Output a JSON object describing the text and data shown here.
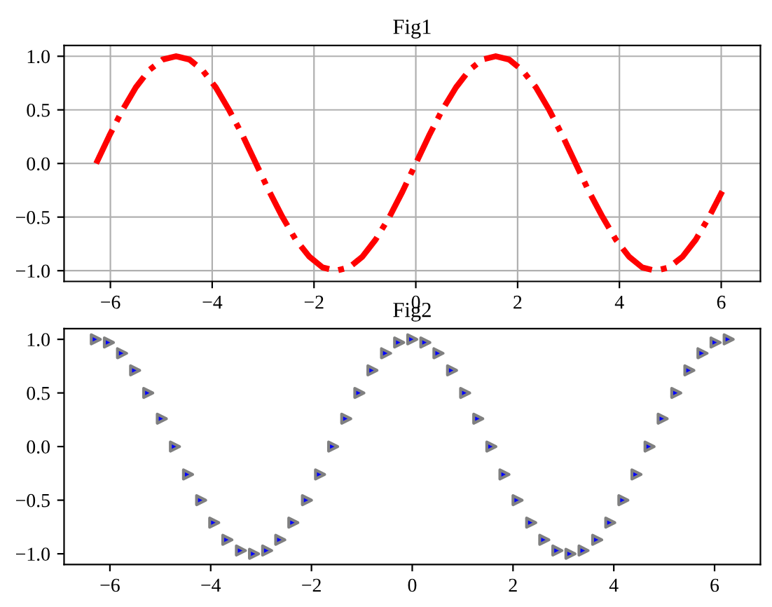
{
  "chart_data": [
    {
      "type": "line",
      "title": "Fig1",
      "grid": true,
      "line_style": "dashdot",
      "marker": "none",
      "x": [
        -6.28,
        -6.02,
        -5.76,
        -5.5,
        -5.24,
        -4.97,
        -4.71,
        -4.45,
        -4.19,
        -3.93,
        -3.67,
        -3.4,
        -3.14,
        -2.88,
        -2.62,
        -2.36,
        -2.09,
        -1.83,
        -1.57,
        -1.31,
        -1.05,
        -0.79,
        -0.52,
        -0.26,
        0,
        0.26,
        0.52,
        0.79,
        1.05,
        1.31,
        1.57,
        1.83,
        2.09,
        2.36,
        2.62,
        2.88,
        3.14,
        3.4,
        3.67,
        3.93,
        4.19,
        4.45,
        4.71,
        4.97,
        5.24,
        5.5,
        5.76,
        6.02
      ],
      "series": [
        {
          "color": "#ff0000",
          "values": [
            0,
            0.26,
            0.5,
            0.71,
            0.87,
            0.97,
            1,
            0.97,
            0.87,
            0.71,
            0.5,
            0.26,
            0,
            -0.26,
            -0.5,
            -0.71,
            -0.87,
            -0.97,
            -1,
            -0.97,
            -0.87,
            -0.71,
            -0.5,
            -0.26,
            0,
            0.26,
            0.5,
            0.71,
            0.87,
            0.97,
            1,
            0.97,
            0.87,
            0.71,
            0.5,
            0.26,
            0,
            -0.26,
            -0.5,
            -0.71,
            -0.87,
            -0.97,
            -1,
            -0.97,
            -0.87,
            -0.71,
            -0.5,
            -0.26
          ]
        }
      ],
      "xlim": [
        -6.91,
        6.77
      ],
      "xticks": [
        -6,
        -4,
        -2,
        0,
        2,
        4,
        6
      ],
      "ylim": [
        -1.1,
        1.1
      ],
      "yticks": [
        {
          "value": -1,
          "label": "−1.0"
        },
        {
          "value": -0.5,
          "label": "−0.5"
        },
        {
          "value": 0,
          "label": "0.0"
        },
        {
          "value": 0.5,
          "label": "0.5"
        },
        {
          "value": 1,
          "label": "1.0"
        }
      ]
    },
    {
      "type": "scatter",
      "title": "Fig2",
      "grid": false,
      "marker": "triangle",
      "x": [
        -6.28,
        -6.02,
        -5.76,
        -5.5,
        -5.24,
        -4.97,
        -4.71,
        -4.45,
        -4.19,
        -3.93,
        -3.67,
        -3.4,
        -3.14,
        -2.88,
        -2.62,
        -2.36,
        -2.09,
        -1.83,
        -1.57,
        -1.31,
        -1.05,
        -0.79,
        -0.52,
        -0.26,
        0,
        0.26,
        0.52,
        0.79,
        1.05,
        1.31,
        1.57,
        1.83,
        2.09,
        2.36,
        2.62,
        2.88,
        3.14,
        3.4,
        3.67,
        3.93,
        4.19,
        4.45,
        4.71,
        4.97,
        5.24,
        5.5,
        5.76,
        6.02,
        6.28
      ],
      "series": [
        {
          "color": "#0000ff",
          "values": [
            1,
            0.97,
            0.87,
            0.71,
            0.5,
            0.26,
            0,
            -0.26,
            -0.5,
            -0.71,
            -0.87,
            -0.97,
            -1,
            -0.97,
            -0.87,
            -0.71,
            -0.5,
            -0.26,
            0,
            0.26,
            0.5,
            0.71,
            0.87,
            0.97,
            1,
            0.97,
            0.87,
            0.71,
            0.5,
            0.26,
            0,
            -0.26,
            -0.5,
            -0.71,
            -0.87,
            -0.97,
            -1,
            -0.97,
            -0.87,
            -0.71,
            -0.5,
            -0.26,
            0,
            0.26,
            0.5,
            0.71,
            0.87,
            0.97,
            1
          ]
        }
      ],
      "xlim": [
        -6.91,
        6.91
      ],
      "xticks": [
        -6,
        -4,
        -2,
        0,
        2,
        4,
        6
      ],
      "ylim": [
        -1.1,
        1.1
      ],
      "yticks": [
        {
          "value": -1,
          "label": "−1.0"
        },
        {
          "value": -0.5,
          "label": "−0.5"
        },
        {
          "value": 0,
          "label": "0.0"
        },
        {
          "value": 0.5,
          "label": "0.5"
        },
        {
          "value": 1,
          "label": "1.0"
        }
      ]
    }
  ]
}
